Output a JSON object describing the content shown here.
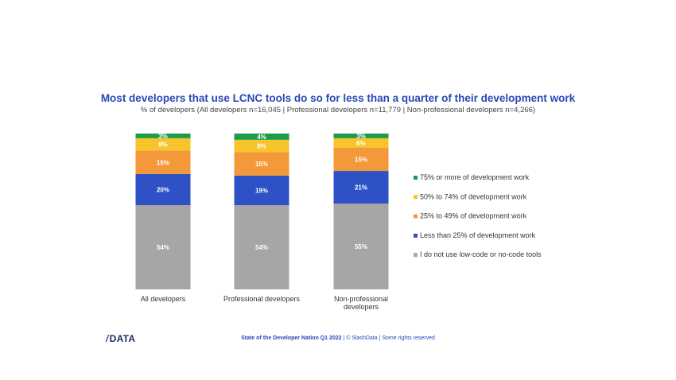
{
  "header": {
    "title": "Most developers that use LCNC tools do so for less than a quarter of their development work",
    "subtitle": "% of developers (All developers n=16,045 | Professional developers n=11,779 | Non-professional developers n=4,266)"
  },
  "footer": {
    "logo_slash": "/",
    "logo_text": "DATA",
    "report_name": "State of the Developer Nation Q1 2022",
    "credits": " | © SlashData | Some rights reserved"
  },
  "chart_data": {
    "type": "bar",
    "stacked": true,
    "categories": [
      "All developers",
      "Professional developers",
      "Non-professional developers"
    ],
    "series": [
      {
        "name": "I do not use low-code or no-code tools",
        "color": "#a6a6a6",
        "values": [
          54,
          54,
          55
        ]
      },
      {
        "name": "Less than 25% of development work",
        "color": "#2e52c6",
        "values": [
          20,
          19,
          21
        ]
      },
      {
        "name": "25% to 49% of development work",
        "color": "#f4993a",
        "values": [
          15,
          15,
          15
        ]
      },
      {
        "name": "50% to 74% of development work",
        "color": "#f7c52b",
        "values": [
          8,
          8,
          6
        ]
      },
      {
        "name": "75% or more of development work",
        "color": "#1e9b4a",
        "values": [
          3,
          4,
          3
        ]
      }
    ],
    "value_suffix": "%",
    "legend_position": "right",
    "grid": false
  }
}
